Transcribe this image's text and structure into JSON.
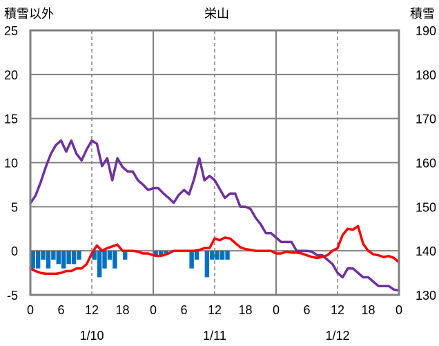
{
  "chart_data": {
    "type": "line",
    "title": "栄山",
    "left_axis_label": "積雪以外",
    "right_axis_label": "積雪",
    "y_left": {
      "min": -5,
      "max": 25,
      "ticks": [
        -5,
        0,
        5,
        10,
        15,
        20,
        25
      ]
    },
    "y_right": {
      "min": 130,
      "max": 190,
      "ticks": [
        130,
        140,
        150,
        160,
        170,
        180,
        190
      ]
    },
    "x": {
      "min": 0,
      "max": 72,
      "tick_hours": [
        0,
        6,
        12,
        18,
        24,
        30,
        36,
        42,
        48,
        54,
        60,
        66,
        72
      ],
      "tick_labels": [
        "0",
        "6",
        "12",
        "18",
        "0",
        "6",
        "12",
        "18",
        "0",
        "6",
        "12",
        "18",
        "0"
      ],
      "day_lines": [
        24,
        48
      ],
      "dashed_lines": [
        12,
        36,
        60
      ],
      "date_labels": [
        {
          "text": "1/10",
          "at": 12
        },
        {
          "text": "1/11",
          "at": 36
        },
        {
          "text": "1/12",
          "at": 60
        }
      ]
    },
    "colors": {
      "snow_depth": "#7030a0",
      "temperature": "#ff0000",
      "precipitation": "#0070c0",
      "frame": "#808080",
      "grid": "#808080"
    },
    "series": [
      {
        "key": "snow_depth",
        "axis": "right",
        "values": [
          150.8,
          152.5,
          155.5,
          159,
          162,
          164,
          165,
          162.5,
          165,
          162,
          160.5,
          163,
          165,
          164.3,
          159.2,
          161,
          156,
          161,
          159,
          158,
          158,
          156,
          155,
          153.8,
          154.2,
          154.2,
          153,
          152,
          150.9,
          152.7,
          153.8,
          152.8,
          156.3,
          161,
          156,
          157,
          156,
          154,
          152,
          153,
          153,
          150,
          150,
          149.5,
          147.5,
          146,
          144,
          144,
          143,
          142,
          142,
          142,
          140,
          140,
          140,
          139.8,
          139,
          139,
          138,
          137,
          135,
          134,
          136,
          136,
          135,
          134,
          134,
          133,
          132,
          132,
          132,
          131.2,
          131
        ]
      },
      {
        "key": "temperature",
        "axis": "left",
        "values": [
          -2,
          -2.3,
          -2.5,
          -2.6,
          -2.6,
          -2.6,
          -2.5,
          -2.3,
          -2.3,
          -2,
          -2,
          -1.5,
          -0.3,
          0.6,
          0,
          0.3,
          0.5,
          0.7,
          0,
          0,
          0,
          -0.1,
          -0.3,
          -0.3,
          -0.5,
          -0.6,
          -0.5,
          -0.3,
          0,
          0,
          0,
          0,
          0,
          0.1,
          0.3,
          0.3,
          1.4,
          1.2,
          1.5,
          1.4,
          0.9,
          0.4,
          0.2,
          0.1,
          0,
          0,
          0,
          0,
          -0.3,
          -0.3,
          -0.1,
          -0.2,
          -0.2,
          -0.3,
          -0.5,
          -0.7,
          -0.8,
          -0.7,
          -0.5,
          0,
          0.3,
          1.8,
          2.5,
          2.4,
          2.8,
          0.8,
          0,
          -0.4,
          -0.5,
          -0.7,
          -0.6,
          -0.8,
          -1.3
        ]
      },
      {
        "key": "precipitation",
        "axis": "left",
        "type": "bar",
        "values": [
          -2,
          -2,
          -1,
          -2,
          -1,
          -1.5,
          -2,
          -1.5,
          -1.5,
          -1,
          0,
          0,
          -1,
          -3,
          -2,
          -1,
          -2,
          0,
          -1,
          0,
          0,
          0,
          0,
          0,
          -0.5,
          -0.5,
          -0.5,
          0,
          0,
          0,
          0,
          -2,
          -1,
          0,
          -3,
          -1,
          -1,
          -1,
          -1,
          0,
          0,
          0,
          0,
          0,
          0,
          0,
          0,
          0,
          0,
          0,
          0,
          0,
          0,
          0,
          0,
          0,
          0,
          0,
          0,
          0,
          0,
          0,
          0,
          0,
          0,
          0,
          0,
          0,
          0,
          0,
          0,
          0
        ]
      }
    ]
  }
}
